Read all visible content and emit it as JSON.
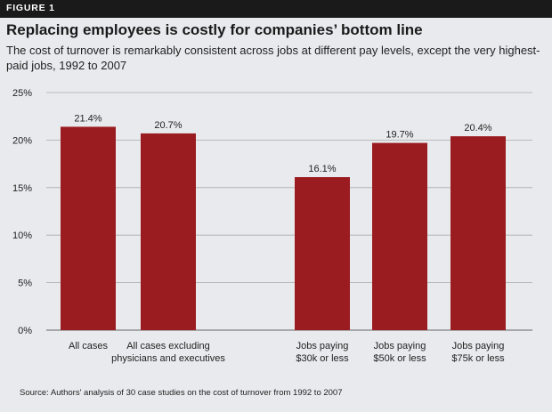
{
  "figure_label": "FIGURE 1",
  "title": "Replacing employees is costly for companies’ bottom line",
  "subtitle": "The cost of turnover is remarkably consistent across jobs at different pay levels, except the very highest-paid jobs, 1992 to 2007",
  "source": "Source: Authors' analysis of 30 case studies on the cost of turnover from 1992 to 2007",
  "colors": {
    "bar": "#9b1c20",
    "background": "#e8eaed",
    "grid": "#aaaaaa"
  },
  "chart_data": {
    "type": "bar",
    "categories": [
      [
        "All cases"
      ],
      [
        "All cases excluding",
        "physicians and executives"
      ],
      [
        "Jobs paying",
        "$30k or less"
      ],
      [
        "Jobs paying",
        "$50k or less"
      ],
      [
        "Jobs paying",
        "$75k or less"
      ]
    ],
    "values": [
      21.4,
      20.7,
      16.1,
      19.7,
      20.4
    ],
    "value_labels": [
      "21.4%",
      "20.7%",
      "16.1%",
      "19.7%",
      "20.4%"
    ],
    "ylim": [
      0,
      25
    ],
    "yticks": [
      0,
      5,
      10,
      15,
      20,
      25
    ],
    "ytick_labels": [
      "0%",
      "5%",
      "10%",
      "15%",
      "20%",
      "25%"
    ],
    "grid": true,
    "legend": false
  }
}
